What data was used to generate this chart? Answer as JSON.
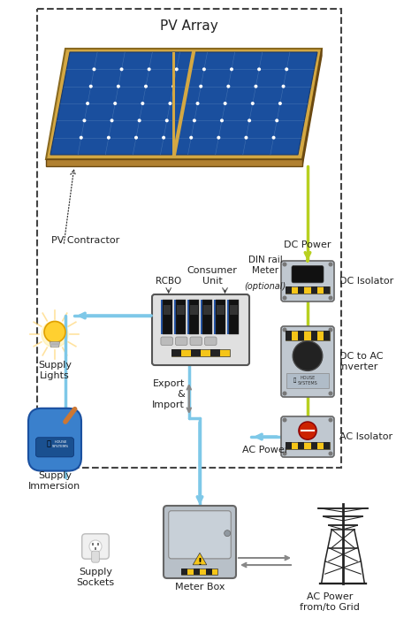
{
  "bg_color": "#ffffff",
  "pv_array_label": "PV Array",
  "pv_contractor_label": "PV Contractor",
  "dc_power_label": "DC Power",
  "dc_isolator_label": "DC Isolator",
  "dc_to_ac_label": "DC to AC\nInverter",
  "ac_isolator_label": "AC Isolator",
  "ac_power_label": "AC Power",
  "consumer_unit_label": "Consumer\nUnit",
  "rcbo_label": "RCBO",
  "din_rail_label": "DIN rail\nMeter\n(optional)",
  "supply_lights_label": "Supply\nLights",
  "supply_immersion_label": "Supply\nImmersion",
  "supply_sockets_label": "Supply\nSockets",
  "export_import_label": "Export\n&\nImport",
  "meter_box_label": "Meter Box",
  "ac_power_grid_label": "AC Power\nfrom/to Grid",
  "solar_blue_dark": "#1a4f9e",
  "solar_blue_mid": "#2560b8",
  "solar_blue_light": "#3a78d4",
  "solar_frame_top": "#d4a843",
  "solar_frame_side": "#a07828",
  "line_dc": "#b8d020",
  "line_ac": "#7ec8e8",
  "line_gray": "#888888",
  "box_gray": "#c0c8d0",
  "warn_yellow": "#f5c518",
  "red_button": "#cc2200",
  "dark_text": "#222222"
}
